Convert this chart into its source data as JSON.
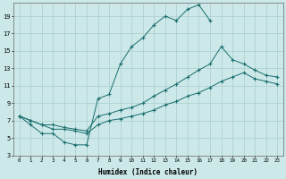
{
  "xlabel": "Humidex (Indice chaleur)",
  "bg_color": "#cce8e8",
  "grid_color": "#aacece",
  "line_color": "#1a6e6e",
  "xlim": [
    -0.5,
    23.5
  ],
  "ylim": [
    3,
    20.5
  ],
  "xticks": [
    0,
    1,
    2,
    3,
    4,
    5,
    6,
    7,
    8,
    9,
    10,
    11,
    12,
    13,
    14,
    15,
    16,
    17,
    18,
    19,
    20,
    21,
    22,
    23
  ],
  "yticks": [
    3,
    5,
    7,
    9,
    11,
    13,
    15,
    17,
    19
  ],
  "line1_x": [
    0,
    1,
    2,
    3,
    4,
    5,
    6,
    7,
    8,
    9,
    10,
    11,
    12,
    13,
    14,
    15,
    16,
    17
  ],
  "line1_y": [
    7.5,
    6.5,
    5.5,
    5.5,
    4.5,
    4.2,
    4.2,
    9.5,
    10.0,
    13.5,
    15.5,
    16.5,
    18.0,
    19.0,
    18.5,
    19.8,
    20.3,
    18.5
  ],
  "line2_x": [
    0,
    1,
    2,
    3,
    4,
    5,
    6,
    7,
    8,
    9,
    10,
    11,
    12,
    13,
    14,
    15,
    16,
    17,
    18,
    19,
    20,
    21,
    22,
    23
  ],
  "line2_y": [
    7.5,
    7.0,
    6.5,
    6.5,
    6.2,
    6.0,
    5.8,
    7.5,
    7.8,
    8.2,
    8.5,
    9.0,
    9.8,
    10.5,
    11.2,
    12.0,
    12.8,
    13.5,
    15.5,
    14.0,
    13.5,
    12.8,
    12.2,
    12.0
  ],
  "line3_x": [
    0,
    1,
    2,
    3,
    4,
    5,
    6,
    7,
    8,
    9,
    10,
    11,
    12,
    13,
    14,
    15,
    16,
    17,
    18,
    19,
    20,
    21,
    22,
    23
  ],
  "line3_y": [
    7.5,
    7.0,
    6.5,
    6.0,
    6.0,
    5.8,
    5.5,
    6.5,
    7.0,
    7.2,
    7.5,
    7.8,
    8.2,
    8.8,
    9.2,
    9.8,
    10.2,
    10.8,
    11.5,
    12.0,
    12.5,
    11.8,
    11.5,
    11.2
  ]
}
